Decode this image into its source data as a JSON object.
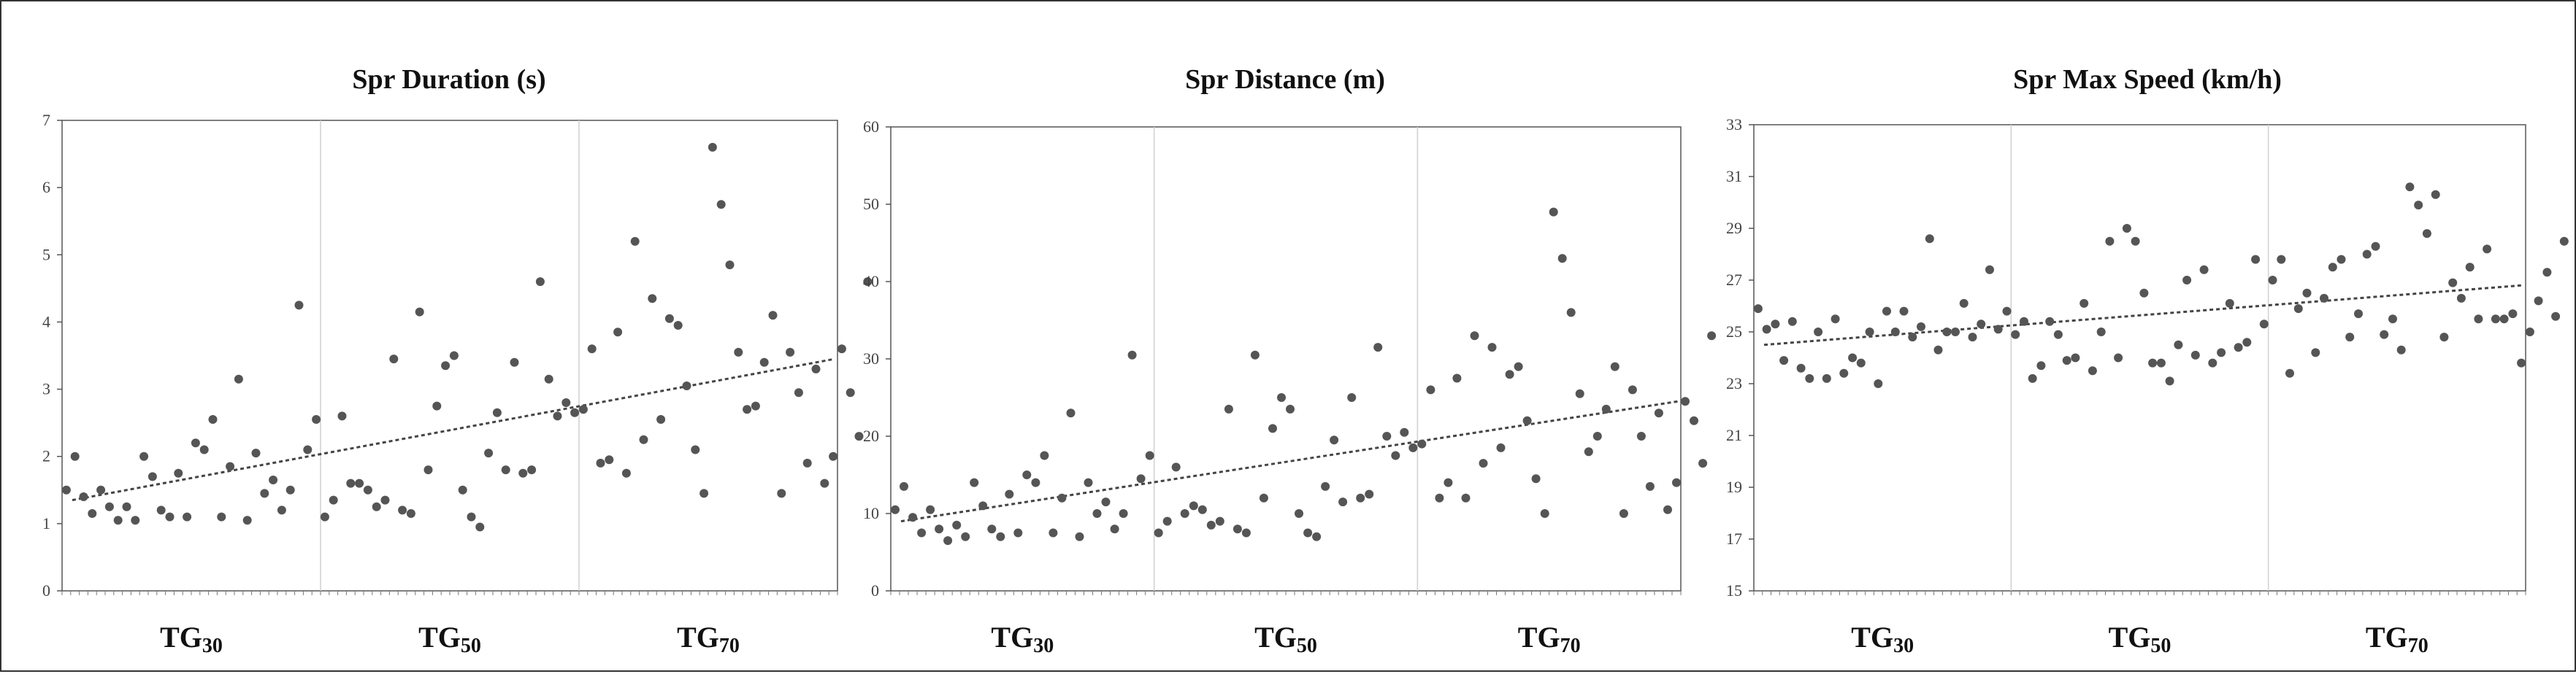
{
  "chart_data": [
    {
      "type": "scatter",
      "title": "Spr Duration (s)",
      "ylim": [
        0,
        7
      ],
      "yticks": [
        "0",
        "1",
        "2",
        "3",
        "4",
        "5",
        "6",
        "7"
      ],
      "groups": [
        {
          "prefix": "TG",
          "sub": "30"
        },
        {
          "prefix": "TG",
          "sub": "50"
        },
        {
          "prefix": "TG",
          "sub": "70"
        }
      ],
      "trend": {
        "start": 1.35,
        "end": 3.45
      },
      "grid": "vertical group separators",
      "points_per_group": 30,
      "series": [
        {
          "group": 0,
          "values": [
            1.5,
            2.0,
            1.4,
            1.15,
            1.5,
            1.25,
            1.05,
            1.25,
            1.05,
            2.0,
            1.7,
            1.2,
            1.1,
            1.75,
            1.1,
            2.2,
            2.1,
            2.55,
            1.1,
            1.85,
            3.15,
            1.05,
            2.05,
            1.45,
            1.65,
            1.2,
            1.5,
            4.25,
            2.1,
            2.55
          ]
        },
        {
          "group": 1,
          "values": [
            1.1,
            1.35,
            2.6,
            1.6,
            1.6,
            1.5,
            1.25,
            1.35,
            3.45,
            1.2,
            1.15,
            4.15,
            1.8,
            2.75,
            3.35,
            3.5,
            1.5,
            1.1,
            0.95,
            2.05,
            2.65,
            1.8,
            3.4,
            1.75,
            1.8,
            4.6,
            3.15,
            2.6,
            2.8,
            2.65
          ]
        },
        {
          "group": 2,
          "values": [
            2.7,
            3.6,
            1.9,
            1.95,
            3.85,
            1.75,
            5.2,
            2.25,
            4.35,
            2.55,
            4.05,
            3.95,
            3.05,
            2.1,
            1.45,
            6.6,
            5.75,
            4.85,
            3.55,
            2.7,
            2.75,
            3.4,
            4.1,
            1.45,
            3.55,
            2.95,
            1.9,
            3.3,
            1.6,
            2.0
          ]
        },
        {
          "group": 2,
          "values": [
            3.6,
            2.95,
            2.3,
            4.6
          ]
        }
      ]
    },
    {
      "type": "scatter",
      "title": "Spr Distance (m)",
      "ylim": [
        0,
        60
      ],
      "yticks": [
        "0",
        "10",
        "20",
        "30",
        "40",
        "50",
        "60"
      ],
      "groups": [
        {
          "prefix": "TG",
          "sub": "30"
        },
        {
          "prefix": "TG",
          "sub": "50"
        },
        {
          "prefix": "TG",
          "sub": "70"
        }
      ],
      "trend": {
        "start": 9.0,
        "end": 24.5
      },
      "grid": "vertical group separators",
      "points_per_group": 30,
      "series": [
        {
          "group": 0,
          "values": [
            10.5,
            13.5,
            9.5,
            7.5,
            10.5,
            8.0,
            6.5,
            8.5,
            7.0,
            14.0,
            11.0,
            8.0,
            7.0,
            12.5,
            7.5,
            15.0,
            14.0,
            17.5,
            7.5,
            12.0,
            23.0,
            7.0,
            14.0,
            10.0,
            11.5,
            8.0,
            10.0,
            30.5,
            14.5,
            17.5
          ]
        },
        {
          "group": 1,
          "values": [
            7.5,
            9.0,
            16.0,
            10.0,
            11.0,
            10.5,
            8.5,
            9.0,
            23.5,
            8.0,
            7.5,
            30.5,
            12.0,
            21.0,
            25.0,
            23.5,
            10.0,
            7.5,
            7.0,
            13.5,
            19.5,
            11.5,
            25.0,
            12.0,
            12.5,
            31.5,
            20.0,
            17.5,
            20.5,
            18.5
          ]
        },
        {
          "group": 2,
          "values": [
            19.0,
            26.0,
            12.0,
            14.0,
            27.5,
            12.0,
            33.0,
            16.5,
            31.5,
            18.5,
            28.0,
            29.0,
            22.0,
            14.5,
            10.0,
            49.0,
            43.0,
            36.0,
            25.5,
            18.0,
            20.0,
            23.5,
            29.0,
            10.0,
            26.0,
            20.0,
            13.5,
            23.0,
            10.5,
            14.0
          ]
        },
        {
          "group": 2,
          "values": [
            24.5,
            22.0,
            16.5,
            33.0
          ]
        }
      ]
    },
    {
      "type": "scatter",
      "title": "Spr Max Speed (km/h)",
      "ylim": [
        15,
        33
      ],
      "yticks": [
        "15",
        "17",
        "19",
        "21",
        "23",
        "25",
        "27",
        "29",
        "31",
        "33"
      ],
      "groups": [
        {
          "prefix": "TG",
          "sub": "30"
        },
        {
          "prefix": "TG",
          "sub": "50"
        },
        {
          "prefix": "TG",
          "sub": "70"
        }
      ],
      "trend": {
        "start": 24.5,
        "end": 26.8
      },
      "grid": "vertical group separators",
      "points_per_group": 30,
      "series": [
        {
          "group": 0,
          "values": [
            25.9,
            25.1,
            25.3,
            23.9,
            25.4,
            23.6,
            23.2,
            25.0,
            23.2,
            25.5,
            23.4,
            24.0,
            23.8,
            25.0,
            23.0,
            25.8,
            25.0,
            25.8,
            24.8,
            25.2,
            28.6,
            24.3,
            25.0,
            25.0,
            26.1,
            24.8,
            25.3,
            27.4,
            25.1,
            25.8
          ]
        },
        {
          "group": 1,
          "values": [
            24.9,
            25.4,
            23.2,
            23.7,
            25.4,
            24.9,
            23.9,
            24.0,
            26.1,
            23.5,
            25.0,
            28.5,
            24.0,
            29.0,
            28.5,
            26.5,
            23.8,
            23.8,
            23.1,
            24.5,
            27.0,
            24.1,
            27.4,
            23.8,
            24.2,
            26.1,
            24.4,
            24.6,
            27.8,
            25.3
          ]
        },
        {
          "group": 2,
          "values": [
            27.0,
            27.8,
            23.4,
            25.9,
            26.5,
            24.2,
            26.3,
            27.5,
            27.8,
            24.8,
            25.7,
            28.0,
            28.3,
            24.9,
            25.5,
            24.3,
            30.6,
            29.9,
            28.8,
            30.3,
            24.8,
            26.9,
            26.3,
            27.5,
            25.5,
            28.2,
            25.5,
            25.5,
            25.7,
            23.8
          ]
        },
        {
          "group": 2,
          "values": [
            25.0,
            26.2,
            27.3,
            25.6,
            28.5
          ]
        }
      ]
    }
  ]
}
